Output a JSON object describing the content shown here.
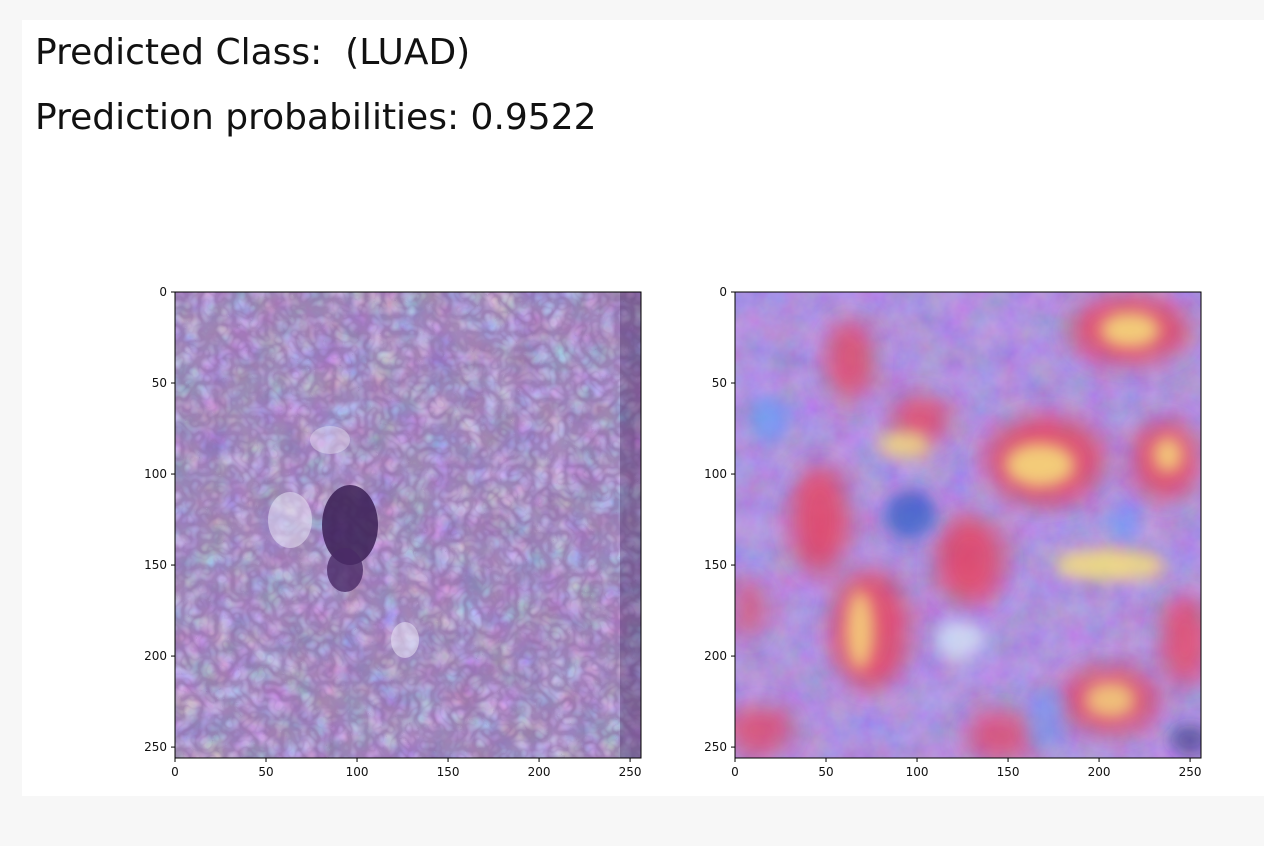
{
  "output": {
    "predicted_class_line": "Predicted Class:  (LUAD)",
    "probability_line": "Prediction probabilities: 0.9522"
  },
  "plots": [
    {
      "name": "original-image",
      "xticks": [
        "0",
        "50",
        "100",
        "150",
        "200",
        "250"
      ],
      "yticks": [
        "0",
        "50",
        "100",
        "150",
        "200",
        "250"
      ]
    },
    {
      "name": "gradcam-heatmap-overlay",
      "xticks": [
        "0",
        "50",
        "100",
        "150",
        "200",
        "250"
      ],
      "yticks": [
        "0",
        "50",
        "100",
        "150",
        "200",
        "250"
      ]
    }
  ],
  "colors": {
    "tissue_base": "#8a78c8",
    "tissue_dark": "#3b1f55",
    "heat_red": "#e8405a",
    "heat_yellow": "#f7e27a",
    "heat_blue": "#5aa0ff"
  }
}
